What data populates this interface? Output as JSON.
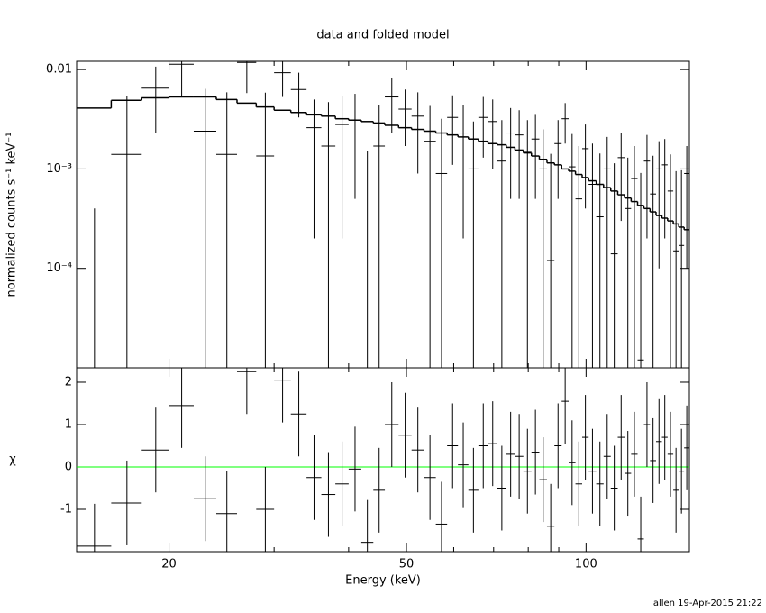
{
  "chart_data": {
    "type": "errorbar",
    "title": "data and folded model",
    "xlabel": "Energy (keV)",
    "xlog": true,
    "xlim": [
      14,
      149
    ],
    "xticks": [
      20,
      50,
      100
    ],
    "xminorticks": [
      30,
      40,
      60,
      70,
      80,
      90
    ],
    "bins": [
      14,
      16,
      18,
      20,
      22,
      24,
      26,
      28,
      30,
      32,
      34,
      36,
      38,
      40,
      42,
      44,
      46,
      48.5,
      51,
      53.5,
      56,
      58.5,
      61,
      63.5,
      66,
      68.5,
      71,
      73.5,
      76,
      78.5,
      81,
      83.5,
      86,
      88.5,
      91,
      93.5,
      96,
      98.5,
      101,
      104,
      107,
      110,
      113,
      116,
      119,
      122,
      125,
      128,
      131,
      134,
      137,
      140,
      143,
      146,
      149
    ],
    "panels": [
      {
        "ylabel": "normalized counts s⁻¹ keV⁻¹",
        "ylog": true,
        "ylim": [
          1e-05,
          0.0121
        ],
        "yticks": [
          0.01,
          {
            "value": 0.001,
            "label": "10⁻³"
          },
          {
            "value": 0.0001,
            "label": "10⁻⁴"
          }
        ],
        "series": [
          {
            "kind": "data",
            "color": "#000000",
            "values": [
              -0.0003,
              0.0014,
              0.0065,
              0.0113,
              0.0024,
              0.0014,
              0.0118,
              0.00135,
              0.0093,
              0.0063,
              0.0026,
              0.0017,
              0.0028,
              0.0031,
              -0.0005,
              0.0017,
              0.0053,
              0.004,
              0.0034,
              0.0019,
              0.0009,
              0.0033,
              0.0023,
              0.001,
              0.0033,
              0.003,
              0.0012,
              0.0023,
              0.0022,
              0.0015,
              0.002,
              0.001,
              0.00012,
              0.0018,
              0.0032,
              0.00105,
              0.0005,
              0.0016,
              0.0007,
              0.00033,
              0.001,
              0.00014,
              0.0013,
              0.0004,
              0.0008,
              1.2e-05,
              0.0012,
              0.00056,
              0.001,
              0.0011,
              0.0006,
              0.00015,
              0.00017,
              0.0009
            ],
            "errors": [
              0.0007,
              0.004,
              0.0042,
              0.006,
              0.004,
              0.0045,
              0.006,
              0.0045,
              0.004,
              0.003,
              0.0024,
              0.003,
              0.0026,
              0.0026,
              0.002,
              0.0027,
              0.003,
              0.0023,
              0.0025,
              0.0024,
              0.0023,
              0.0022,
              0.0021,
              0.002,
              0.002,
              0.002,
              0.0019,
              0.0018,
              0.0017,
              0.0016,
              0.0015,
              0.0015,
              0.0013,
              0.0013,
              0.0014,
              0.0012,
              0.0012,
              0.0012,
              0.0011,
              0.0011,
              0.0011,
              0.001,
              0.001,
              0.0009,
              0.0009,
              0.0009,
              0.001,
              0.0008,
              0.0009,
              0.0009,
              0.0008,
              0.0008,
              0.0008,
              0.0008
            ]
          },
          {
            "kind": "model",
            "color": "#000000",
            "values": [
              0.0041,
              0.0049,
              0.0052,
              0.0053,
              0.0053,
              0.005,
              0.0046,
              0.0042,
              0.0039,
              0.0037,
              0.0035,
              0.0034,
              0.0032,
              0.0031,
              0.003,
              0.0029,
              0.00275,
              0.0026,
              0.0025,
              0.0024,
              0.0023,
              0.0022,
              0.0021,
              0.002,
              0.0019,
              0.0018,
              0.00175,
              0.00165,
              0.00155,
              0.00145,
              0.00135,
              0.00125,
              0.00115,
              0.0011,
              0.001,
              0.00095,
              0.00088,
              0.00082,
              0.00076,
              0.0007,
              0.00065,
              0.0006,
              0.00055,
              0.00051,
              0.00047,
              0.00043,
              0.0004,
              0.00037,
              0.00034,
              0.00032,
              0.0003,
              0.00028,
              0.00026,
              0.000245
            ]
          }
        ]
      },
      {
        "ylabel": "χ",
        "ylog": false,
        "ylim": [
          -2,
          2.34
        ],
        "yticks": [
          -1,
          0,
          1,
          2
        ],
        "reference_line": {
          "value": 0,
          "color": "#00ff00"
        },
        "series": [
          {
            "kind": "data",
            "color": "#000000",
            "values": [
              -1.87,
              -0.85,
              0.4,
              1.45,
              -0.75,
              -1.1,
              2.25,
              -1.0,
              2.05,
              1.25,
              -0.25,
              -0.65,
              -0.4,
              -0.05,
              -1.78,
              -0.55,
              1.0,
              0.75,
              0.4,
              -0.25,
              -1.35,
              0.5,
              0.05,
              -0.55,
              0.5,
              0.55,
              -0.5,
              0.3,
              0.25,
              -0.1,
              0.35,
              -0.3,
              -1.4,
              0.5,
              1.55,
              0.1,
              -0.4,
              0.7,
              -0.1,
              -0.4,
              0.25,
              -0.5,
              0.7,
              -0.15,
              0.3,
              -1.7,
              1.0,
              0.15,
              0.6,
              0.7,
              0.3,
              -0.55,
              -0.1,
              0.45
            ],
            "errors": [
              1,
              1,
              1,
              1,
              1,
              1,
              1,
              1,
              1,
              1,
              1,
              1,
              1,
              1,
              1,
              1,
              1,
              1,
              1,
              1,
              1,
              1,
              1,
              1,
              1,
              1,
              1,
              1,
              1,
              1,
              1,
              1,
              1,
              1,
              1,
              1,
              1,
              1,
              1,
              1,
              1,
              1,
              1,
              1,
              1,
              1,
              1,
              1,
              1,
              1,
              1,
              1,
              1,
              1
            ]
          }
        ]
      }
    ]
  },
  "footer": "allen 19-Apr-2015 21:22"
}
